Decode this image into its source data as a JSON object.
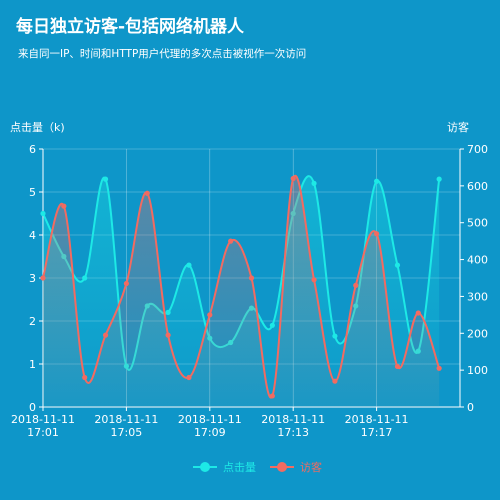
{
  "chart_data": {
    "type": "line",
    "title": "每日独立访客-包括网络机器人",
    "subtitle": "来自同一IP、时间和HTTP用户代理的多次点击被视作一次访问",
    "x": [
      "2018-11-11 17:01",
      "2018-11-11 17:02",
      "2018-11-11 17:03",
      "2018-11-11 17:04",
      "2018-11-11 17:05",
      "2018-11-11 17:06",
      "2018-11-11 17:07",
      "2018-11-11 17:08",
      "2018-11-11 17:09",
      "2018-11-11 17:10",
      "2018-11-11 17:11",
      "2018-11-11 17:12",
      "2018-11-11 17:13",
      "2018-11-11 17:14",
      "2018-11-11 17:15",
      "2018-11-11 17:16",
      "2018-11-11 17:17",
      "2018-11-11 17:18",
      "2018-11-11 17:19",
      "2018-11-11 17:20"
    ],
    "x_tick_labels": [
      {
        "index": 0,
        "line1": "2018-11-11",
        "line2": "17:01"
      },
      {
        "index": 4,
        "line1": "2018-11-11",
        "line2": "17:05"
      },
      {
        "index": 8,
        "line1": "2018-11-11",
        "line2": "17:09"
      },
      {
        "index": 12,
        "line1": "2018-11-11",
        "line2": "17:13"
      },
      {
        "index": 16,
        "line1": "2018-11-11",
        "line2": "17:17"
      }
    ],
    "y_left": {
      "label": "点击量（k)",
      "min": 0,
      "max": 6,
      "ticks": [
        0,
        1,
        2,
        3,
        4,
        5,
        6
      ]
    },
    "y_right": {
      "label": "访客",
      "min": 0,
      "max": 700,
      "ticks": [
        0,
        100,
        200,
        300,
        400,
        500,
        600,
        700
      ]
    },
    "series": [
      {
        "name": "点击量",
        "axis": "left",
        "color": "#1de9e6",
        "values": [
          4.5,
          3.5,
          3.0,
          5.3,
          0.95,
          2.35,
          2.2,
          3.3,
          1.6,
          1.5,
          2.3,
          1.9,
          4.5,
          5.2,
          1.65,
          2.35,
          5.25,
          3.3,
          1.3,
          5.3
        ]
      },
      {
        "name": "访客",
        "axis": "right",
        "color": "#f26b61",
        "values": [
          350,
          545,
          80,
          195,
          335,
          580,
          195,
          80,
          250,
          450,
          350,
          30,
          620,
          345,
          70,
          330,
          470,
          110,
          255,
          105
        ]
      }
    ],
    "grid": true,
    "legend": "bottom"
  }
}
